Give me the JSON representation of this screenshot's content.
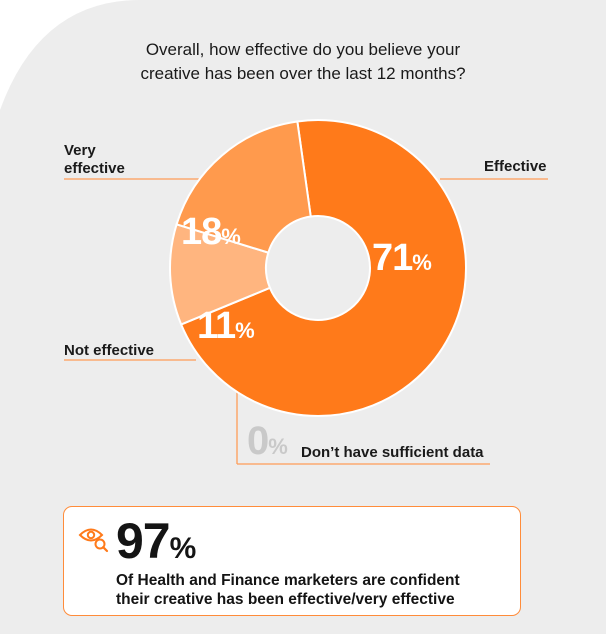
{
  "chart_data": {
    "type": "pie",
    "title_lines": [
      "Overall, how effective do you believe your",
      "creative has been over the last 12 months?"
    ],
    "slices": [
      {
        "label": "Effective",
        "value": 71,
        "value_text": "71",
        "color": "#ff7a1a"
      },
      {
        "label": "Very effective",
        "value": 18,
        "value_text": "18",
        "color": "#ff9a4d"
      },
      {
        "label": "Not effective",
        "value": 11,
        "value_text": "11",
        "color": "#ffb57f"
      },
      {
        "label": "Don’t have sufficient data",
        "value": 0,
        "value_text": "0",
        "color": "#c9c9c9"
      }
    ],
    "very_effective_lines": [
      "Very",
      "effective"
    ],
    "percent_symbol": "%",
    "hole": "donut"
  },
  "callout": {
    "icon": "eye-search-icon",
    "big_value": "97",
    "percent_symbol": "%",
    "lines": [
      "Of Health and Finance marketers are confident",
      "their creative has been effective/very effective"
    ],
    "border_color": "#ff8c3a"
  },
  "colors": {
    "leader_line": "#ff9d57",
    "background_shape": "#ededed"
  }
}
